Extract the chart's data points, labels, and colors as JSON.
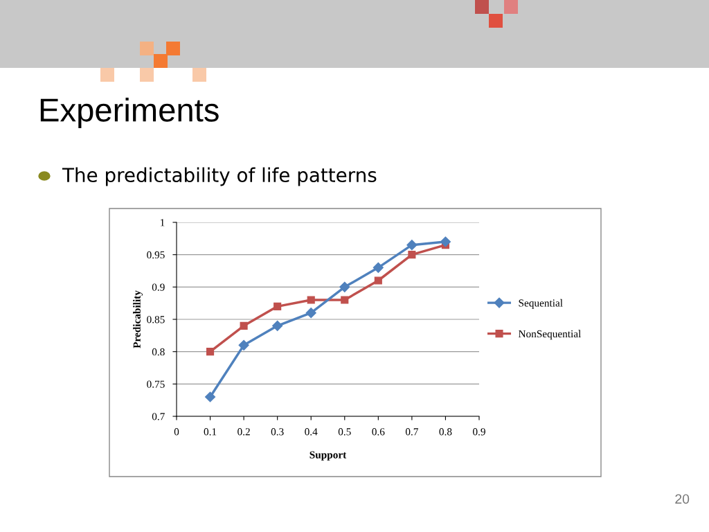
{
  "chart_data": {
    "type": "line",
    "title": "Experiments",
    "subtitle": "The predictability of life patterns",
    "xlabel": "Support",
    "ylabel": "Predicability",
    "x": [
      0.1,
      0.2,
      0.3,
      0.4,
      0.5,
      0.6,
      0.7,
      0.8
    ],
    "series": [
      {
        "name": "Sequential",
        "color": "#4f81bd",
        "marker": "diamond",
        "values": [
          0.73,
          0.81,
          0.84,
          0.86,
          0.9,
          0.93,
          0.965,
          0.97
        ]
      },
      {
        "name": "NonSequential",
        "color": "#c0504d",
        "marker": "square",
        "values": [
          0.8,
          0.84,
          0.87,
          0.88,
          0.88,
          0.91,
          0.95,
          0.965
        ]
      }
    ],
    "xlim": [
      0,
      0.9
    ],
    "xticks": [
      0,
      0.1,
      0.2,
      0.3,
      0.4,
      0.5,
      0.6,
      0.7,
      0.8,
      0.9
    ],
    "ylim": [
      0.7,
      1
    ],
    "yticks": [
      0.7,
      0.75,
      0.8,
      0.85,
      0.9,
      0.95,
      1
    ],
    "grid": "y",
    "legend": "right",
    "line_style": "solid",
    "annotations": [
      "20"
    ]
  }
}
